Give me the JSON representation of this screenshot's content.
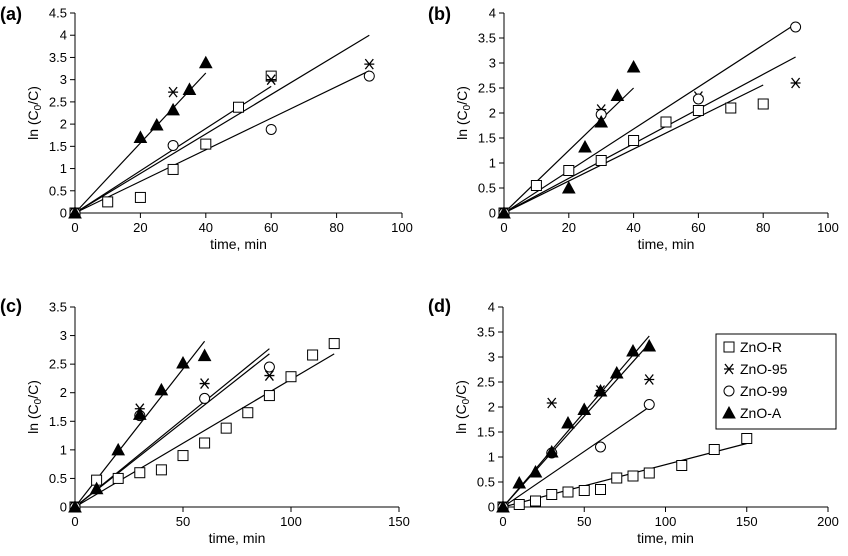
{
  "legend": [
    {
      "label": "ZnO-R",
      "marker": "square"
    },
    {
      "label": "ZnO-95",
      "marker": "asterisk"
    },
    {
      "label": "ZnO-99",
      "marker": "circle"
    },
    {
      "label": "ZnO-A",
      "marker": "triangle"
    }
  ],
  "chart_data": [
    {
      "type": "scatter",
      "panel_label": "(a)",
      "xlabel": "time, min",
      "ylabel": "ln (C0/C)",
      "ylabel_main": "ln (C",
      "ylabel_sub": "0",
      "ylabel_end": "/C)",
      "xlim": [
        0,
        100
      ],
      "ylim": [
        0,
        4.5
      ],
      "xticks": [
        "0",
        "20",
        "40",
        "60",
        "80",
        "100"
      ],
      "yticks": [
        "0",
        "0.5",
        "1",
        "1.5",
        "2",
        "2.5",
        "3",
        "3.5",
        "4",
        "4.5"
      ],
      "series": [
        {
          "name": "ZnO-R",
          "marker": "square",
          "points": [
            [
              0,
              0
            ],
            [
              10,
              0.25
            ],
            [
              20,
              0.35
            ],
            [
              30,
              0.98
            ],
            [
              40,
              1.55
            ],
            [
              50,
              2.38
            ],
            [
              60,
              3.08
            ]
          ]
        },
        {
          "name": "ZnO-95",
          "marker": "asterisk",
          "points": [
            [
              0,
              0
            ],
            [
              30,
              2.72
            ],
            [
              60,
              3.0
            ],
            [
              90,
              3.35
            ]
          ]
        },
        {
          "name": "ZnO-99",
          "marker": "circle",
          "points": [
            [
              0,
              0
            ],
            [
              30,
              1.52
            ],
            [
              60,
              1.88
            ],
            [
              90,
              3.08
            ]
          ]
        },
        {
          "name": "ZnO-A",
          "marker": "triangle",
          "points": [
            [
              0,
              0
            ],
            [
              20,
              1.7
            ],
            [
              25,
              1.98
            ],
            [
              30,
              2.32
            ],
            [
              35,
              2.78
            ],
            [
              40,
              3.38
            ]
          ]
        }
      ],
      "fit_lines": [
        {
          "series": "ZnO-A",
          "x": [
            0,
            40
          ],
          "y": [
            0,
            3.15
          ]
        },
        {
          "series": "ZnO-95",
          "x": [
            0,
            90
          ],
          "y": [
            0,
            4.0
          ]
        },
        {
          "series": "ZnO-R",
          "x": [
            0,
            60
          ],
          "y": [
            0,
            2.85
          ]
        },
        {
          "series": "ZnO-99",
          "x": [
            0,
            90
          ],
          "y": [
            0,
            3.2
          ]
        }
      ]
    },
    {
      "type": "scatter",
      "panel_label": "(b)",
      "xlabel": "time, min",
      "ylabel": "ln (C0/C)",
      "ylabel_main": "ln (C",
      "ylabel_sub": "0",
      "ylabel_end": "/C)",
      "xlim": [
        0,
        100
      ],
      "ylim": [
        0,
        4
      ],
      "xticks": [
        "0",
        "20",
        "40",
        "60",
        "80",
        "100"
      ],
      "yticks": [
        "0",
        "0.5",
        "1",
        "1.5",
        "2",
        "2.5",
        "3",
        "3.5",
        "4"
      ],
      "series": [
        {
          "name": "ZnO-R",
          "marker": "square",
          "points": [
            [
              0,
              0
            ],
            [
              10,
              0.55
            ],
            [
              20,
              0.85
            ],
            [
              30,
              1.05
            ],
            [
              40,
              1.45
            ],
            [
              50,
              1.82
            ],
            [
              60,
              2.05
            ],
            [
              70,
              2.1
            ],
            [
              80,
              2.18
            ]
          ]
        },
        {
          "name": "ZnO-95",
          "marker": "asterisk",
          "points": [
            [
              0,
              0
            ],
            [
              30,
              2.07
            ],
            [
              60,
              2.33
            ],
            [
              90,
              2.6
            ]
          ]
        },
        {
          "name": "ZnO-99",
          "marker": "circle",
          "points": [
            [
              0,
              0
            ],
            [
              30,
              1.97
            ],
            [
              60,
              2.28
            ],
            [
              90,
              3.72
            ]
          ]
        },
        {
          "name": "ZnO-A",
          "marker": "triangle",
          "points": [
            [
              0,
              0
            ],
            [
              20,
              0.5
            ],
            [
              25,
              1.32
            ],
            [
              30,
              1.82
            ],
            [
              35,
              2.35
            ],
            [
              40,
              2.92
            ]
          ]
        }
      ],
      "fit_lines": [
        {
          "series": "ZnO-A",
          "x": [
            0,
            40
          ],
          "y": [
            0,
            2.5
          ]
        },
        {
          "series": "ZnO-99",
          "x": [
            0,
            90
          ],
          "y": [
            0,
            3.78
          ]
        },
        {
          "series": "ZnO-95",
          "x": [
            0,
            90
          ],
          "y": [
            0,
            3.12
          ]
        },
        {
          "series": "ZnO-R",
          "x": [
            0,
            80
          ],
          "y": [
            0,
            2.56
          ]
        }
      ]
    },
    {
      "type": "scatter",
      "panel_label": "(c)",
      "xlabel": "time, min",
      "ylabel": "ln (C0/C)",
      "ylabel_main": "ln (C",
      "ylabel_sub": "0",
      "ylabel_end": "/C)",
      "xlim": [
        0,
        150
      ],
      "ylim": [
        0,
        3.5
      ],
      "xticks": [
        "0",
        "50",
        "100",
        "150"
      ],
      "yticks": [
        "0",
        "0.5",
        "1",
        "1.5",
        "2",
        "2.5",
        "3",
        "3.5"
      ],
      "series": [
        {
          "name": "ZnO-R",
          "marker": "square",
          "points": [
            [
              0,
              0
            ],
            [
              10,
              0.47
            ],
            [
              20,
              0.5
            ],
            [
              30,
              0.6
            ],
            [
              40,
              0.65
            ],
            [
              50,
              0.9
            ],
            [
              60,
              1.12
            ],
            [
              70,
              1.38
            ],
            [
              80,
              1.65
            ],
            [
              90,
              1.95
            ],
            [
              100,
              2.28
            ],
            [
              110,
              2.66
            ],
            [
              120,
              2.86
            ]
          ]
        },
        {
          "name": "ZnO-95",
          "marker": "asterisk",
          "points": [
            [
              0,
              0
            ],
            [
              30,
              1.72
            ],
            [
              60,
              2.16
            ],
            [
              90,
              2.3
            ]
          ]
        },
        {
          "name": "ZnO-99",
          "marker": "circle",
          "points": [
            [
              0,
              0
            ],
            [
              30,
              1.6
            ],
            [
              60,
              1.9
            ],
            [
              90,
              2.45
            ]
          ]
        },
        {
          "name": "ZnO-A",
          "marker": "triangle",
          "points": [
            [
              0,
              0
            ],
            [
              10,
              0.32
            ],
            [
              20,
              1.0
            ],
            [
              30,
              1.62
            ],
            [
              40,
              2.05
            ],
            [
              50,
              2.52
            ],
            [
              60,
              2.65
            ]
          ]
        }
      ],
      "fit_lines": [
        {
          "series": "ZnO-A",
          "x": [
            0,
            60
          ],
          "y": [
            0,
            2.9
          ]
        },
        {
          "series": "ZnO-95",
          "x": [
            0,
            90
          ],
          "y": [
            0,
            2.77
          ]
        },
        {
          "series": "ZnO-99",
          "x": [
            0,
            90
          ],
          "y": [
            0,
            2.68
          ]
        },
        {
          "series": "ZnO-R",
          "x": [
            0,
            120
          ],
          "y": [
            0,
            2.68
          ]
        }
      ]
    },
    {
      "type": "scatter",
      "panel_label": "(d)",
      "xlabel": "time, min",
      "ylabel": "ln (C0/C)",
      "ylabel_main": "ln (C",
      "ylabel_sub": "0",
      "ylabel_end": "/C)",
      "xlim": [
        0,
        200
      ],
      "ylim": [
        0,
        4
      ],
      "xticks": [
        "0",
        "50",
        "100",
        "150",
        "200"
      ],
      "yticks": [
        "0",
        "0.5",
        "1",
        "1.5",
        "2",
        "2.5",
        "3",
        "3.5",
        "4"
      ],
      "series": [
        {
          "name": "ZnO-R",
          "marker": "square",
          "points": [
            [
              0,
              0
            ],
            [
              10,
              0.05
            ],
            [
              20,
              0.12
            ],
            [
              30,
              0.25
            ],
            [
              40,
              0.3
            ],
            [
              50,
              0.33
            ],
            [
              60,
              0.35
            ],
            [
              70,
              0.58
            ],
            [
              80,
              0.62
            ],
            [
              90,
              0.68
            ],
            [
              110,
              0.83
            ],
            [
              130,
              1.15
            ],
            [
              150,
              1.37
            ]
          ]
        },
        {
          "name": "ZnO-95",
          "marker": "asterisk",
          "points": [
            [
              0,
              0
            ],
            [
              30,
              2.08
            ],
            [
              60,
              2.33
            ],
            [
              90,
              2.55
            ]
          ]
        },
        {
          "name": "ZnO-99",
          "marker": "circle",
          "points": [
            [
              0,
              0
            ],
            [
              30,
              1.08
            ],
            [
              60,
              1.2
            ],
            [
              90,
              2.05
            ]
          ]
        },
        {
          "name": "ZnO-A",
          "marker": "triangle",
          "points": [
            [
              0,
              0
            ],
            [
              10,
              0.48
            ],
            [
              20,
              0.7
            ],
            [
              30,
              1.1
            ],
            [
              40,
              1.68
            ],
            [
              50,
              1.95
            ],
            [
              60,
              2.32
            ],
            [
              70,
              2.68
            ],
            [
              80,
              3.12
            ],
            [
              90,
              3.22
            ]
          ]
        }
      ],
      "fit_lines": [
        {
          "series": "ZnO-95",
          "x": [
            0,
            90
          ],
          "y": [
            0,
            3.42
          ]
        },
        {
          "series": "ZnO-A",
          "x": [
            0,
            90
          ],
          "y": [
            0,
            3.27
          ]
        },
        {
          "series": "ZnO-99",
          "x": [
            0,
            90
          ],
          "y": [
            0,
            2.0
          ]
        },
        {
          "series": "ZnO-R",
          "x": [
            0,
            150
          ],
          "y": [
            0,
            1.27
          ]
        }
      ]
    }
  ]
}
